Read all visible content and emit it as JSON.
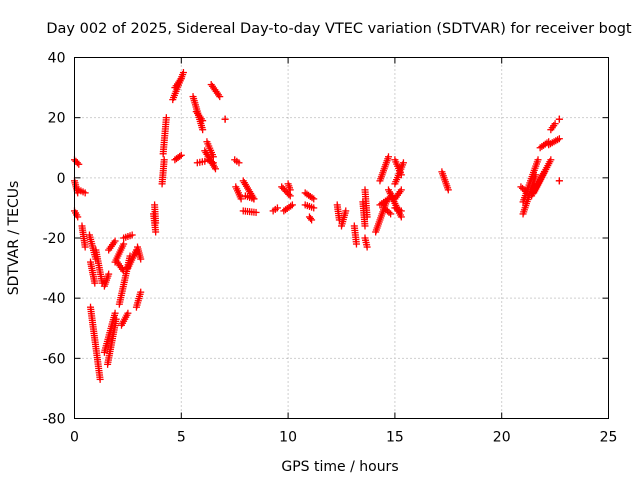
{
  "chart_data": {
    "type": "scatter",
    "title": "Day 002 of 2025, Sidereal Day-to-day VTEC variation (SDTVAR) for receiver bogt",
    "xlabel": "GPS time / hours",
    "ylabel": "SDTVAR / TECUs",
    "xlim": [
      0,
      25
    ],
    "ylim": [
      -80,
      40
    ],
    "xticks": [
      "0",
      "5",
      "10",
      "15",
      "20",
      "25"
    ],
    "yticks": [
      "-80",
      "-60",
      "-40",
      "-20",
      "0",
      "20",
      "40"
    ],
    "grid": true,
    "marker": "plus",
    "color": "#ff0000",
    "series": [
      {
        "segments": [
          [
            [
              0.0,
              6
            ],
            [
              0.2,
              4.5
            ]
          ],
          [
            [
              0.0,
              -1
            ],
            [
              0.15,
              -5
            ]
          ],
          [
            [
              0.0,
              -11
            ],
            [
              0.15,
              -13
            ]
          ],
          [
            [
              0.2,
              -4
            ],
            [
              0.5,
              -5
            ]
          ],
          [
            [
              0.35,
              -16
            ],
            [
              0.5,
              -23
            ]
          ],
          [
            [
              0.7,
              -19
            ],
            [
              1.0,
              -27
            ]
          ],
          [
            [
              0.75,
              -28
            ],
            [
              0.95,
              -35
            ]
          ],
          [
            [
              0.75,
              -43
            ],
            [
              1.2,
              -67
            ]
          ],
          [
            [
              1.0,
              -24
            ],
            [
              1.3,
              -35
            ]
          ],
          [
            [
              1.4,
              -36
            ],
            [
              1.6,
              -32
            ]
          ],
          [
            [
              1.4,
              -58
            ],
            [
              1.9,
              -45
            ]
          ],
          [
            [
              1.55,
              -62
            ],
            [
              1.95,
              -47
            ]
          ],
          [
            [
              1.6,
              -24
            ],
            [
              1.9,
              -21
            ]
          ],
          [
            [
              1.9,
              -28
            ],
            [
              2.3,
              -22
            ]
          ],
          [
            [
              2.0,
              -28
            ],
            [
              2.3,
              -31
            ]
          ],
          [
            [
              2.1,
              -42
            ],
            [
              2.6,
              -26
            ]
          ],
          [
            [
              2.2,
              -49
            ],
            [
              2.5,
              -45
            ]
          ],
          [
            [
              2.3,
              -20
            ],
            [
              2.7,
              -19
            ]
          ],
          [
            [
              2.5,
              -30
            ],
            [
              2.9,
              -24
            ]
          ],
          [
            [
              2.9,
              -43
            ],
            [
              3.1,
              -38
            ]
          ],
          [
            [
              2.95,
              -23
            ],
            [
              3.1,
              -27
            ]
          ],
          [
            [
              3.7,
              -12
            ],
            [
              3.8,
              -18
            ]
          ],
          [
            [
              3.75,
              -9
            ],
            [
              3.8,
              -15
            ]
          ],
          [
            [
              4.1,
              -2
            ],
            [
              4.2,
              6
            ]
          ],
          [
            [
              4.15,
              8
            ],
            [
              4.3,
              20
            ]
          ],
          [
            [
              4.6,
              26
            ],
            [
              5.1,
              35
            ]
          ],
          [
            [
              4.7,
              30
            ],
            [
              5.0,
              33
            ]
          ],
          [
            [
              4.7,
              6
            ],
            [
              5.0,
              7.5
            ]
          ],
          [
            [
              5.55,
              27
            ],
            [
              6.0,
              16
            ]
          ],
          [
            [
              5.7,
              22
            ],
            [
              6.0,
              19
            ]
          ],
          [
            [
              5.75,
              5
            ],
            [
              6.1,
              5.5
            ]
          ],
          [
            [
              6.1,
              9
            ],
            [
              6.6,
              3
            ]
          ],
          [
            [
              6.2,
              12
            ],
            [
              6.5,
              7
            ]
          ],
          [
            [
              6.25,
              6
            ],
            [
              6.5,
              5
            ]
          ],
          [
            [
              6.4,
              31
            ],
            [
              6.8,
              27
            ]
          ],
          [
            [
              7.05,
              19.5
            ],
            [
              7.05,
              19.5
            ]
          ],
          [
            [
              7.5,
              6
            ],
            [
              7.7,
              5
            ]
          ],
          [
            [
              7.55,
              -3
            ],
            [
              7.8,
              -7
            ]
          ],
          [
            [
              7.9,
              -1
            ],
            [
              8.4,
              -7
            ]
          ],
          [
            [
              7.9,
              -11
            ],
            [
              8.5,
              -11.5
            ]
          ],
          [
            [
              8.0,
              -6
            ],
            [
              8.4,
              -7
            ]
          ],
          [
            [
              9.3,
              -11
            ],
            [
              9.5,
              -10
            ]
          ],
          [
            [
              9.7,
              -3
            ],
            [
              10.1,
              -6
            ]
          ],
          [
            [
              9.8,
              -11
            ],
            [
              10.2,
              -9
            ]
          ],
          [
            [
              10.0,
              -2
            ],
            [
              10.1,
              -4
            ]
          ],
          [
            [
              10.8,
              -5
            ],
            [
              11.2,
              -7
            ]
          ],
          [
            [
              10.8,
              -9
            ],
            [
              11.2,
              -10
            ]
          ],
          [
            [
              11.0,
              -13
            ],
            [
              11.1,
              -14
            ]
          ],
          [
            [
              12.3,
              -9
            ],
            [
              12.4,
              -14
            ]
          ],
          [
            [
              12.5,
              -16
            ],
            [
              12.7,
              -11
            ]
          ],
          [
            [
              13.1,
              -16
            ],
            [
              13.2,
              -22
            ]
          ],
          [
            [
              13.5,
              -8
            ],
            [
              13.6,
              -16
            ]
          ],
          [
            [
              13.6,
              -4
            ],
            [
              13.7,
              -13
            ]
          ],
          [
            [
              13.6,
              -20
            ],
            [
              13.7,
              -23
            ]
          ],
          [
            [
              14.1,
              -18
            ],
            [
              14.6,
              -8
            ]
          ],
          [
            [
              14.3,
              -9
            ],
            [
              14.9,
              -6
            ]
          ],
          [
            [
              14.3,
              -1
            ],
            [
              14.7,
              7
            ]
          ],
          [
            [
              14.5,
              -10
            ],
            [
              14.8,
              -12
            ]
          ],
          [
            [
              14.7,
              -4
            ],
            [
              15.3,
              -13
            ]
          ],
          [
            [
              15.0,
              -10
            ],
            [
              15.3,
              -11
            ]
          ],
          [
            [
              15.0,
              -2
            ],
            [
              15.4,
              5
            ]
          ],
          [
            [
              15.0,
              -7
            ],
            [
              15.3,
              -4
            ]
          ],
          [
            [
              15.0,
              6
            ],
            [
              15.3,
              1
            ]
          ],
          [
            [
              17.2,
              2
            ],
            [
              17.5,
              -4
            ]
          ],
          [
            [
              20.9,
              -3
            ],
            [
              21.2,
              -5
            ]
          ],
          [
            [
              21.0,
              -12
            ],
            [
              21.6,
              1
            ]
          ],
          [
            [
              21.0,
              -8
            ],
            [
              21.7,
              6
            ]
          ],
          [
            [
              21.4,
              -6
            ],
            [
              22.0,
              2
            ]
          ],
          [
            [
              21.5,
              -5
            ],
            [
              22.3,
              6
            ]
          ],
          [
            [
              21.8,
              10
            ],
            [
              22.2,
              12
            ]
          ],
          [
            [
              22.2,
              11
            ],
            [
              22.7,
              13
            ]
          ],
          [
            [
              22.3,
              16
            ],
            [
              22.5,
              18
            ]
          ],
          [
            [
              22.7,
              19.5
            ],
            [
              22.7,
              19.5
            ]
          ],
          [
            [
              22.7,
              -1
            ],
            [
              22.7,
              -1
            ]
          ]
        ]
      }
    ]
  }
}
